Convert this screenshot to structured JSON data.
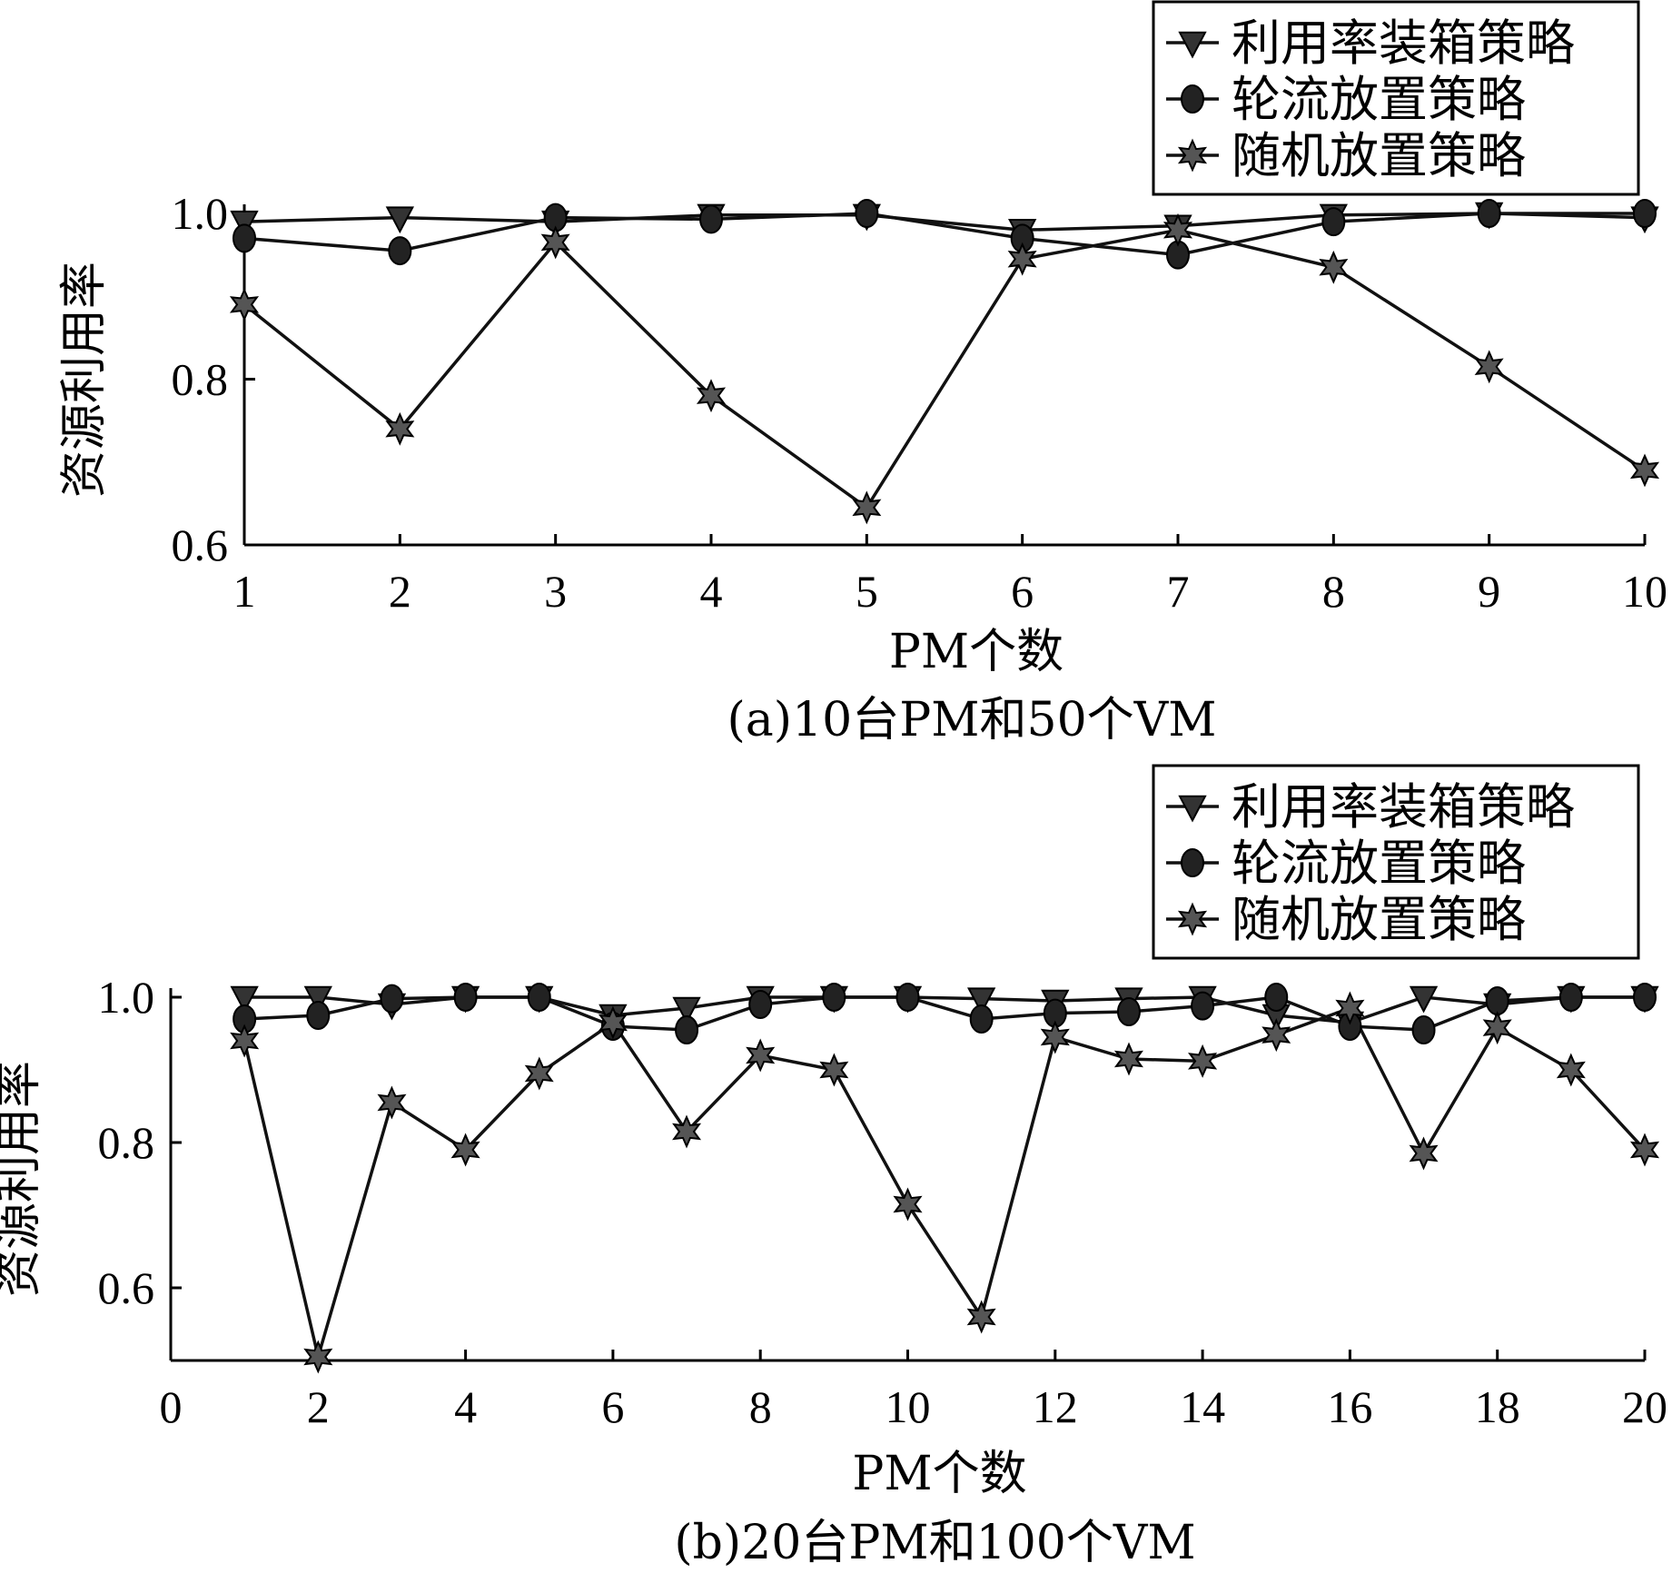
{
  "chart_data": [
    {
      "type": "line",
      "caption": "(a)10台PM和50个VM",
      "xlabel": "PM个数",
      "ylabel": "资源利用率",
      "xlim": [
        1,
        10
      ],
      "ylim": [
        0.6,
        1.0
      ],
      "xticks": [
        1,
        2,
        3,
        4,
        5,
        6,
        7,
        8,
        9,
        10
      ],
      "yticks": [
        0.6,
        0.8,
        1.0
      ],
      "ytick_labels": [
        "0.6",
        "0.8",
        "1.0"
      ],
      "x": [
        1,
        2,
        3,
        4,
        5,
        6,
        7,
        8,
        9,
        10
      ],
      "legend": [
        "利用率装箱策略",
        "轮流放置策略",
        "随机放置策略"
      ],
      "legend_position": "top-right",
      "series": [
        {
          "name": "利用率装箱策略",
          "marker": "triangle",
          "values": [
            0.99,
            0.995,
            0.99,
            0.998,
            0.998,
            0.98,
            0.985,
            0.998,
            1.0,
            0.995
          ]
        },
        {
          "name": "轮流放置策略",
          "marker": "circle",
          "values": [
            0.97,
            0.955,
            0.995,
            0.993,
            1.0,
            0.97,
            0.95,
            0.99,
            1.0,
            1.0
          ]
        },
        {
          "name": "随机放置策略",
          "marker": "star",
          "values": [
            0.89,
            0.74,
            0.965,
            0.78,
            0.645,
            0.945,
            0.98,
            0.935,
            0.815,
            0.69
          ]
        }
      ]
    },
    {
      "type": "line",
      "caption": "(b)20台PM和100个VM",
      "xlabel": "PM个数",
      "ylabel": "资源利用率",
      "xlim": [
        0,
        20
      ],
      "ylim": [
        0.5,
        1.0
      ],
      "xticks": [
        0,
        2,
        4,
        6,
        8,
        10,
        12,
        14,
        16,
        18,
        20
      ],
      "yticks": [
        0.6,
        0.8,
        1.0
      ],
      "ytick_labels": [
        "0.6",
        "0.8",
        "1.0"
      ],
      "x": [
        1,
        2,
        3,
        4,
        5,
        6,
        7,
        8,
        9,
        10,
        11,
        12,
        13,
        14,
        15,
        16,
        17,
        18,
        19,
        20
      ],
      "legend": [
        "利用率装箱策略",
        "轮流放置策略",
        "随机放置策略"
      ],
      "legend_position": "top-right",
      "series": [
        {
          "name": "利用率装箱策略",
          "marker": "triangle",
          "values": [
            1.0,
            1.0,
            0.99,
            1.0,
            1.0,
            0.975,
            0.985,
            1.0,
            1.0,
            1.0,
            0.998,
            0.995,
            0.998,
            1.0,
            0.975,
            0.965,
            1.0,
            0.99,
            1.0,
            1.0
          ]
        },
        {
          "name": "轮流放置策略",
          "marker": "circle",
          "values": [
            0.97,
            0.975,
            0.998,
            1.0,
            1.0,
            0.96,
            0.955,
            0.99,
            1.0,
            1.0,
            0.97,
            0.978,
            0.98,
            0.988,
            1.0,
            0.96,
            0.955,
            0.995,
            1.0,
            1.0
          ]
        },
        {
          "name": "随机放置策略",
          "marker": "star",
          "values": [
            0.94,
            0.505,
            0.855,
            0.79,
            0.895,
            0.965,
            0.815,
            0.92,
            0.9,
            0.715,
            0.56,
            0.945,
            0.915,
            0.912,
            0.948,
            0.985,
            0.785,
            0.958,
            0.9,
            0.79
          ]
        }
      ]
    }
  ]
}
